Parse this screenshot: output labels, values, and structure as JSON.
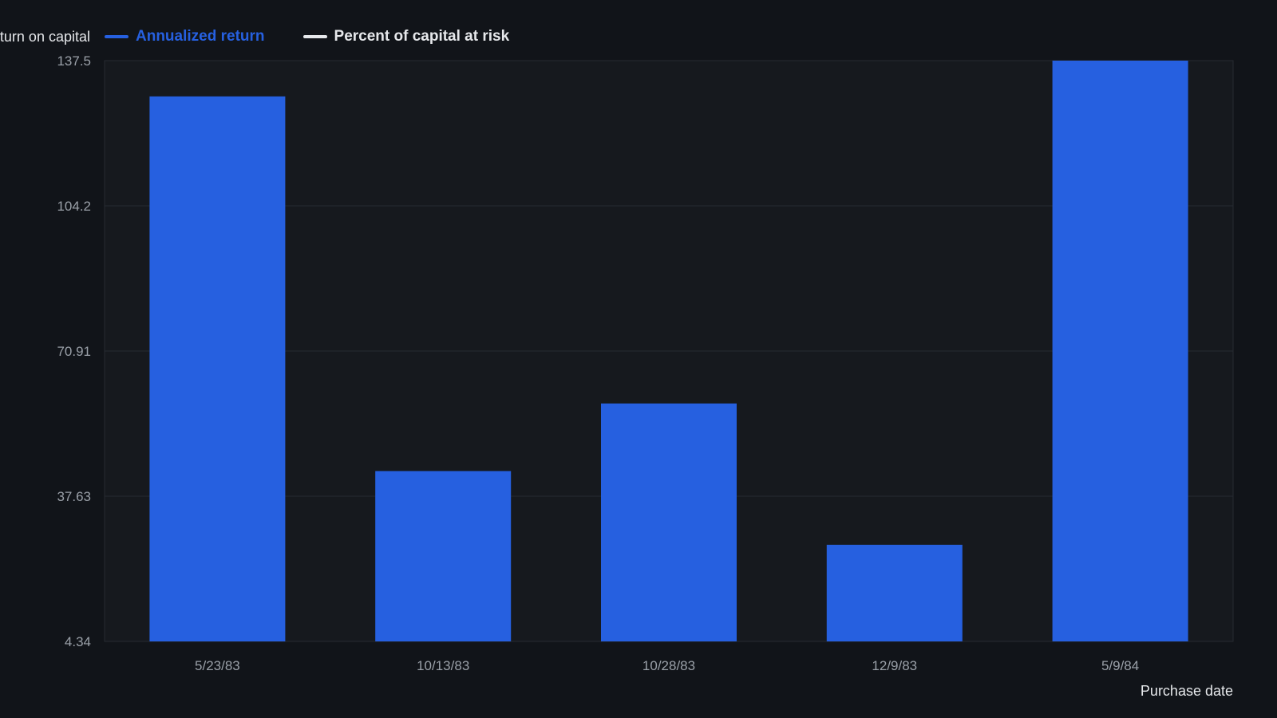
{
  "chart_data": {
    "type": "bar",
    "categories": [
      "5/23/83",
      "10/13/83",
      "10/28/83",
      "12/9/83",
      "5/9/84"
    ],
    "series": [
      {
        "name": "Annualized return",
        "values": [
          129.3,
          43.4,
          58.9,
          26.5,
          137.5
        ]
      }
    ],
    "legend": [
      {
        "label": "Annualized return",
        "color": "#2660e0"
      },
      {
        "label": "Percent of capital at risk",
        "color": "#e6e8eb"
      }
    ],
    "ylabel": "Annualized return on capital, %",
    "xlabel": "Purchase date",
    "yticks": [
      "4.34",
      "37.63",
      "70.91",
      "104.2",
      "137.5"
    ],
    "ylim": [
      4.34,
      137.5
    ],
    "grid": true,
    "legend_position": "top-left",
    "colors": {
      "background": "#111419",
      "plot_background": "#16191e",
      "bar": "#2660e0",
      "grid": "#262a31",
      "tick_text": "#9aa0a8",
      "title_text": "#e6e8eb"
    }
  }
}
